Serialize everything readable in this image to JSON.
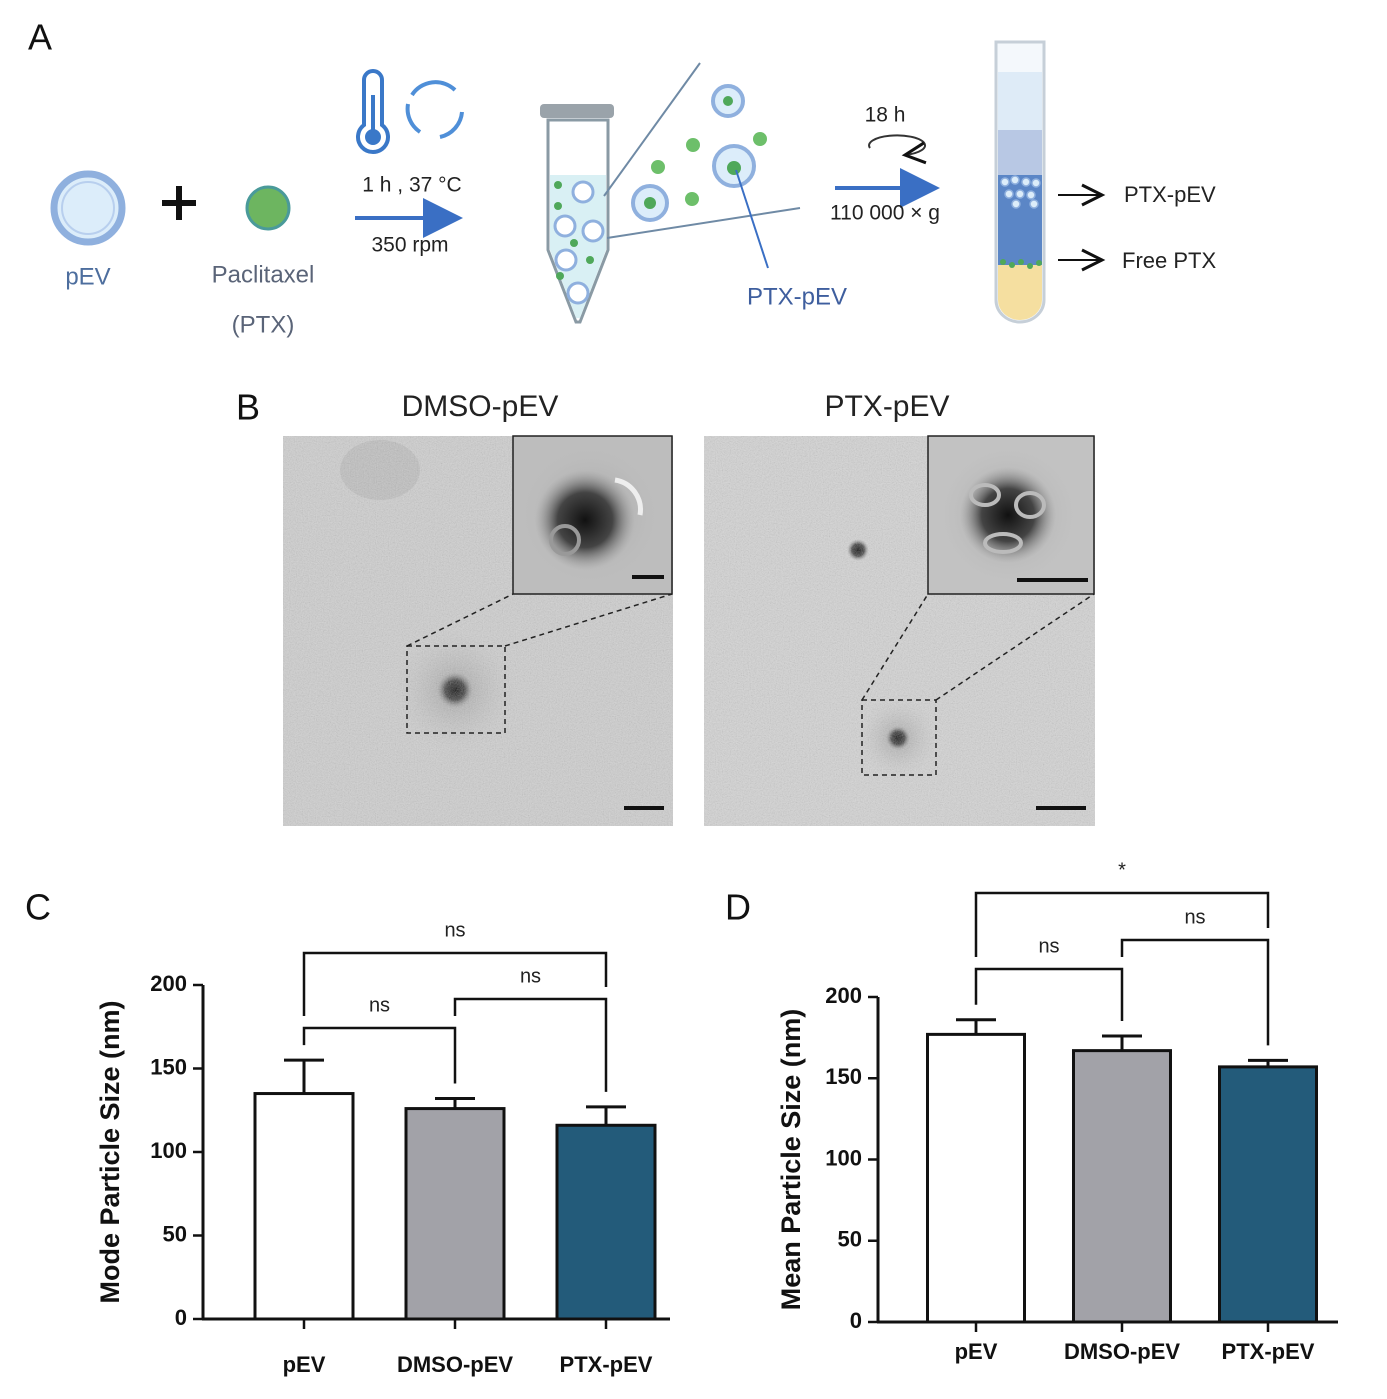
{
  "panel_a": {
    "label": "A",
    "pev": "pEV",
    "drug": "Paclitaxel",
    "drug_abbr": "(PTX)",
    "incubation": "1 h , 37 °C",
    "shaking": "350 rpm",
    "loaded": "PTX-pEV",
    "time": "18 h",
    "centrifuge": "110 000 × g",
    "top_fraction": "PTX-pEV",
    "bottom_fraction": "Free PTX"
  },
  "panel_b": {
    "label": "B",
    "images": [
      {
        "title": "DMSO-pEV"
      },
      {
        "title": "PTX-pEV"
      }
    ]
  },
  "chart_data": [
    {
      "type": "bar",
      "panel": "C",
      "ylabel": "Mode Particle Size (nm)",
      "categories": [
        "pEV",
        "DMSO-pEV",
        "PTX-pEV"
      ],
      "values": [
        135,
        126,
        116
      ],
      "errors": [
        20,
        6,
        11
      ],
      "colors": [
        "#ffffff",
        "#a2a2a8",
        "#235b7a"
      ],
      "ylim": [
        0,
        200
      ],
      "yticks": [
        0,
        50,
        100,
        150,
        200
      ],
      "comparisons": [
        {
          "pair": [
            0,
            2
          ],
          "label": "ns"
        },
        {
          "pair": [
            0,
            1
          ],
          "label": "ns"
        },
        {
          "pair": [
            1,
            2
          ],
          "label": "ns"
        }
      ]
    },
    {
      "type": "bar",
      "panel": "D",
      "ylabel": "Mean Particle Size (nm)",
      "categories": [
        "pEV",
        "DMSO-pEV",
        "PTX-pEV"
      ],
      "values": [
        177,
        167,
        157
      ],
      "errors": [
        9,
        9,
        4
      ],
      "colors": [
        "#ffffff",
        "#a2a2a8",
        "#235b7a"
      ],
      "ylim": [
        0,
        200
      ],
      "yticks": [
        0,
        50,
        100,
        150,
        200
      ],
      "comparisons": [
        {
          "pair": [
            0,
            2
          ],
          "label": "*"
        },
        {
          "pair": [
            0,
            1
          ],
          "label": "ns"
        },
        {
          "pair": [
            1,
            2
          ],
          "label": "ns"
        }
      ]
    }
  ]
}
